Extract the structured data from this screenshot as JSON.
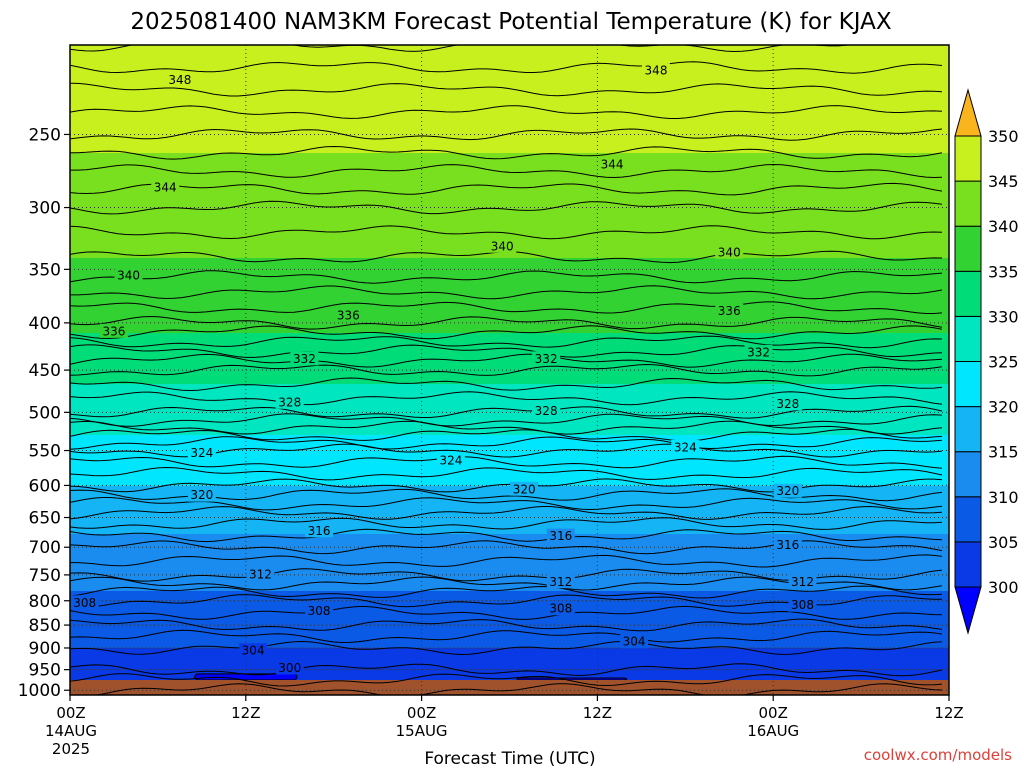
{
  "chart_data": {
    "type": "heatmap",
    "title": "2025081400 NAM3KM Forecast Potential Temperature (K) for KJAX",
    "xlabel": "Forecast Time (UTC)",
    "ylabel": "",
    "credit": "coolwx.com/models",
    "x_ticks": [
      {
        "hour": 0,
        "line1": "00Z",
        "line2": "14AUG",
        "line3": "2025"
      },
      {
        "hour": 12,
        "line1": "12Z",
        "line2": "",
        "line3": ""
      },
      {
        "hour": 24,
        "line1": "00Z",
        "line2": "15AUG",
        "line3": ""
      },
      {
        "hour": 36,
        "line1": "12Z",
        "line2": "",
        "line3": ""
      },
      {
        "hour": 48,
        "line1": "00Z",
        "line2": "16AUG",
        "line3": ""
      },
      {
        "hour": 60,
        "line1": "12Z",
        "line2": "",
        "line3": ""
      }
    ],
    "xlim": [
      0,
      60
    ],
    "y_ticks": [
      250,
      300,
      350,
      400,
      450,
      500,
      550,
      600,
      650,
      700,
      750,
      800,
      850,
      900,
      950,
      1000
    ],
    "y_tick_labels": [
      "250",
      "300",
      "350",
      "400",
      "450",
      "500",
      "550",
      "600",
      "650",
      "700",
      "750",
      "800",
      "850",
      "900",
      "950",
      "1000"
    ],
    "ylim": [
      200,
      1012
    ],
    "y_scale": "log",
    "grid": true,
    "colorbar": {
      "position": "right",
      "levels": [
        300,
        305,
        310,
        315,
        320,
        325,
        330,
        335,
        340,
        345,
        350
      ],
      "labels": [
        "300",
        "305",
        "310",
        "315",
        "320",
        "325",
        "330",
        "335",
        "340",
        "345",
        "350"
      ],
      "colors": [
        "#0000ff",
        "#0a3ae6",
        "#0a5ae6",
        "#1a8cf0",
        "#14b4f5",
        "#00e6ff",
        "#00e6c0",
        "#00dc78",
        "#32d232",
        "#78e01e",
        "#c8f01e",
        "#fff51e",
        "#fab41e"
      ]
    },
    "contour_levels": [
      300,
      304,
      308,
      312,
      316,
      320,
      324,
      328,
      332,
      336,
      340,
      344,
      348
    ],
    "potential_temperature_profile": [
      {
        "pressure": 1000,
        "theta": 302
      },
      {
        "pressure": 950,
        "theta": 304
      },
      {
        "pressure": 900,
        "theta": 305
      },
      {
        "pressure": 850,
        "theta": 307
      },
      {
        "pressure": 800,
        "theta": 309
      },
      {
        "pressure": 750,
        "theta": 312
      },
      {
        "pressure": 700,
        "theta": 314
      },
      {
        "pressure": 650,
        "theta": 316.5
      },
      {
        "pressure": 600,
        "theta": 320
      },
      {
        "pressure": 550,
        "theta": 323
      },
      {
        "pressure": 500,
        "theta": 328
      },
      {
        "pressure": 450,
        "theta": 331
      },
      {
        "pressure": 400,
        "theta": 336
      },
      {
        "pressure": 350,
        "theta": 339.5
      },
      {
        "pressure": 300,
        "theta": 342
      },
      {
        "pressure": 250,
        "theta": 346
      },
      {
        "pressure": 200,
        "theta": 350
      }
    ],
    "contour_labels": [
      {
        "value": "348",
        "hour": 7.5,
        "pressure": 218
      },
      {
        "value": "348",
        "hour": 40,
        "pressure": 213
      },
      {
        "value": "344",
        "hour": 6.5,
        "pressure": 285
      },
      {
        "value": "344",
        "hour": 37,
        "pressure": 269
      },
      {
        "value": "340",
        "hour": 4,
        "pressure": 355
      },
      {
        "value": "340",
        "hour": 29.5,
        "pressure": 330
      },
      {
        "value": "340",
        "hour": 45,
        "pressure": 335
      },
      {
        "value": "336",
        "hour": 3,
        "pressure": 408
      },
      {
        "value": "336",
        "hour": 19,
        "pressure": 392
      },
      {
        "value": "336",
        "hour": 45,
        "pressure": 388
      },
      {
        "value": "332",
        "hour": 16,
        "pressure": 437
      },
      {
        "value": "332",
        "hour": 32.5,
        "pressure": 437
      },
      {
        "value": "332",
        "hour": 47,
        "pressure": 430
      },
      {
        "value": "328",
        "hour": 15,
        "pressure": 487
      },
      {
        "value": "328",
        "hour": 32.5,
        "pressure": 498
      },
      {
        "value": "328",
        "hour": 49,
        "pressure": 489
      },
      {
        "value": "324",
        "hour": 9,
        "pressure": 553
      },
      {
        "value": "324",
        "hour": 26,
        "pressure": 563
      },
      {
        "value": "324",
        "hour": 42,
        "pressure": 545
      },
      {
        "value": "320",
        "hour": 9,
        "pressure": 614
      },
      {
        "value": "320",
        "hour": 31,
        "pressure": 605
      },
      {
        "value": "320",
        "hour": 49,
        "pressure": 608
      },
      {
        "value": "316",
        "hour": 17,
        "pressure": 671
      },
      {
        "value": "316",
        "hour": 33.5,
        "pressure": 680
      },
      {
        "value": "316",
        "hour": 49,
        "pressure": 695
      },
      {
        "value": "312",
        "hour": 13,
        "pressure": 748
      },
      {
        "value": "312",
        "hour": 33.5,
        "pressure": 762
      },
      {
        "value": "312",
        "hour": 50,
        "pressure": 762
      },
      {
        "value": "308",
        "hour": 1,
        "pressure": 803
      },
      {
        "value": "308",
        "hour": 17,
        "pressure": 820
      },
      {
        "value": "308",
        "hour": 33.5,
        "pressure": 815
      },
      {
        "value": "308",
        "hour": 50,
        "pressure": 808
      },
      {
        "value": "304",
        "hour": 12.5,
        "pressure": 905
      },
      {
        "value": "304",
        "hour": 38.5,
        "pressure": 885
      },
      {
        "value": "300",
        "hour": 15,
        "pressure": 945
      }
    ],
    "cold_pools_300K": [
      {
        "start_hour": 8.5,
        "end_hour": 15.5,
        "top_pressure": 960
      },
      {
        "start_hour": 30.5,
        "end_hour": 38,
        "top_pressure": 970
      },
      {
        "start_hour": 52.5,
        "end_hour": 60,
        "top_pressure": 975
      }
    ]
  }
}
